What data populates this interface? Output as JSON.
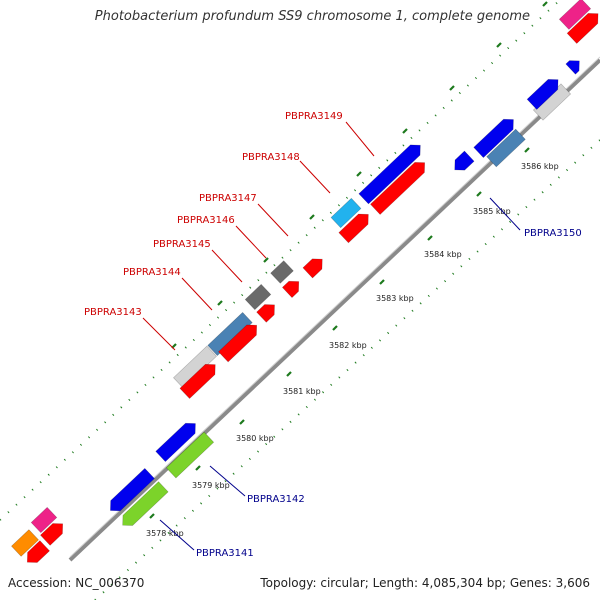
{
  "title": "Photobacterium profundum SS9 chromosome 1, complete genome",
  "accession": "Accession: NC_006370",
  "summary": "Topology: circular; Length: 4,085,304 bp; Genes: 3,606",
  "colors": {
    "backbone": "#8a8a8a",
    "tick_dots": "#1d7a1d",
    "red_label": "#cc0000",
    "blue_label": "#00008b",
    "red_gene": "#ff0000",
    "blue_gene": "#0000ee",
    "steel_gene": "#4a82b4",
    "grey_gene": "#d3d3d3",
    "dark_gene": "#6a6a6a",
    "cyan_gene": "#22b2ee",
    "green_gene": "#7cd32a",
    "pink_gene": "#ee2288",
    "orange_gene": "#ff8c00"
  },
  "ticks": [
    {
      "label": "3578 kbp"
    },
    {
      "label": "3579 kbp"
    },
    {
      "label": "3580 kbp"
    },
    {
      "label": "3581 kbp"
    },
    {
      "label": "3582 kbp"
    },
    {
      "label": "3583 kbp"
    },
    {
      "label": "3584 kbp"
    },
    {
      "label": "3585 kbp"
    },
    {
      "label": "3586 kbp"
    }
  ],
  "gene_labels": [
    {
      "name": "PBPRA3149",
      "color": "red"
    },
    {
      "name": "PBPRA3148",
      "color": "red"
    },
    {
      "name": "PBPRA3147",
      "color": "red"
    },
    {
      "name": "PBPRA3146",
      "color": "red"
    },
    {
      "name": "PBPRA3145",
      "color": "red"
    },
    {
      "name": "PBPRA3144",
      "color": "red"
    },
    {
      "name": "PBPRA3143",
      "color": "red"
    },
    {
      "name": "PBPRA3150",
      "color": "blue"
    },
    {
      "name": "PBPRA3142",
      "color": "blue"
    },
    {
      "name": "PBPRA3141",
      "color": "blue"
    }
  ]
}
